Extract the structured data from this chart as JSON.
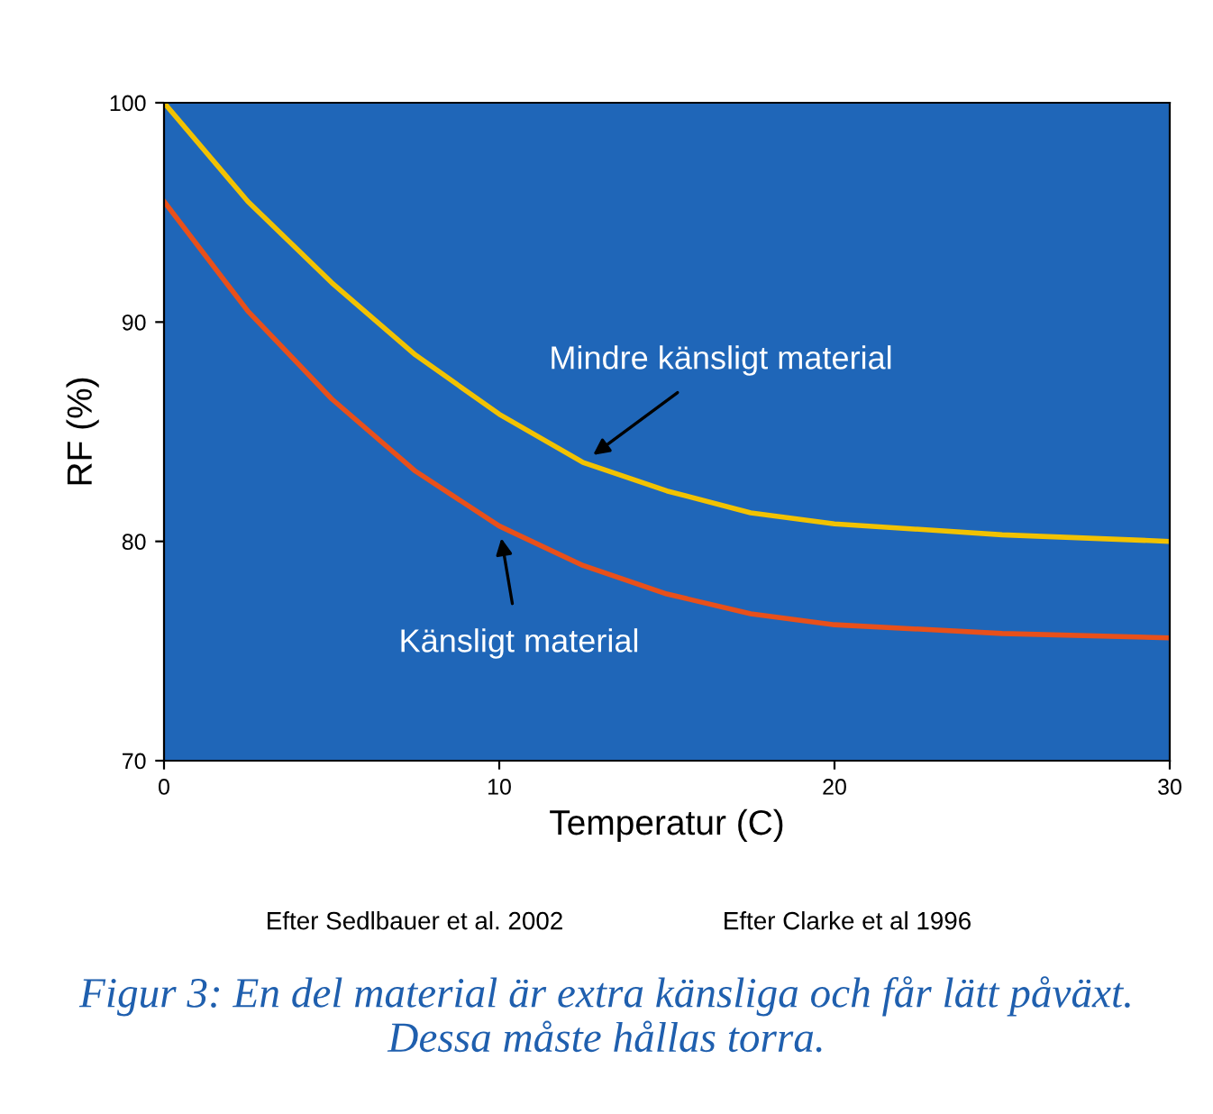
{
  "chart_data": {
    "type": "line",
    "xlabel": "Temperatur (C)",
    "ylabel": "RF (%)",
    "xlim": [
      0,
      30
    ],
    "ylim": [
      70,
      100
    ],
    "xticks": [
      0,
      10,
      20,
      30
    ],
    "yticks": [
      70,
      80,
      90,
      100
    ],
    "grid": false,
    "legend": false,
    "series": [
      {
        "color": "#f2c200",
        "x": [
          0,
          2.5,
          5,
          7.5,
          10,
          12.5,
          15,
          17.5,
          20,
          25,
          30
        ],
        "values": [
          100,
          95.5,
          91.8,
          88.5,
          85.8,
          83.6,
          82.3,
          81.3,
          80.8,
          80.3,
          80.0
        ]
      },
      {
        "color": "#e8501a",
        "x": [
          0,
          2.5,
          5,
          7.5,
          10,
          12.5,
          15,
          17.5,
          20,
          25,
          30
        ],
        "values": [
          95.5,
          90.5,
          86.5,
          83.2,
          80.7,
          78.9,
          77.6,
          76.7,
          76.2,
          75.8,
          75.6
        ]
      }
    ],
    "annotations": [
      {
        "text": "Mindre känsligt material",
        "x": 12.5,
        "y": 83.6
      },
      {
        "text": "Känsligt material",
        "x": 10,
        "y": 80.7
      },
      "Efter Sedlbauer et al. 2002",
      "Efter Clarke et al 1996",
      "Figur 3: En del material är extra känsliga och får lätt påväxt. Dessa måste hållas torra."
    ]
  }
}
